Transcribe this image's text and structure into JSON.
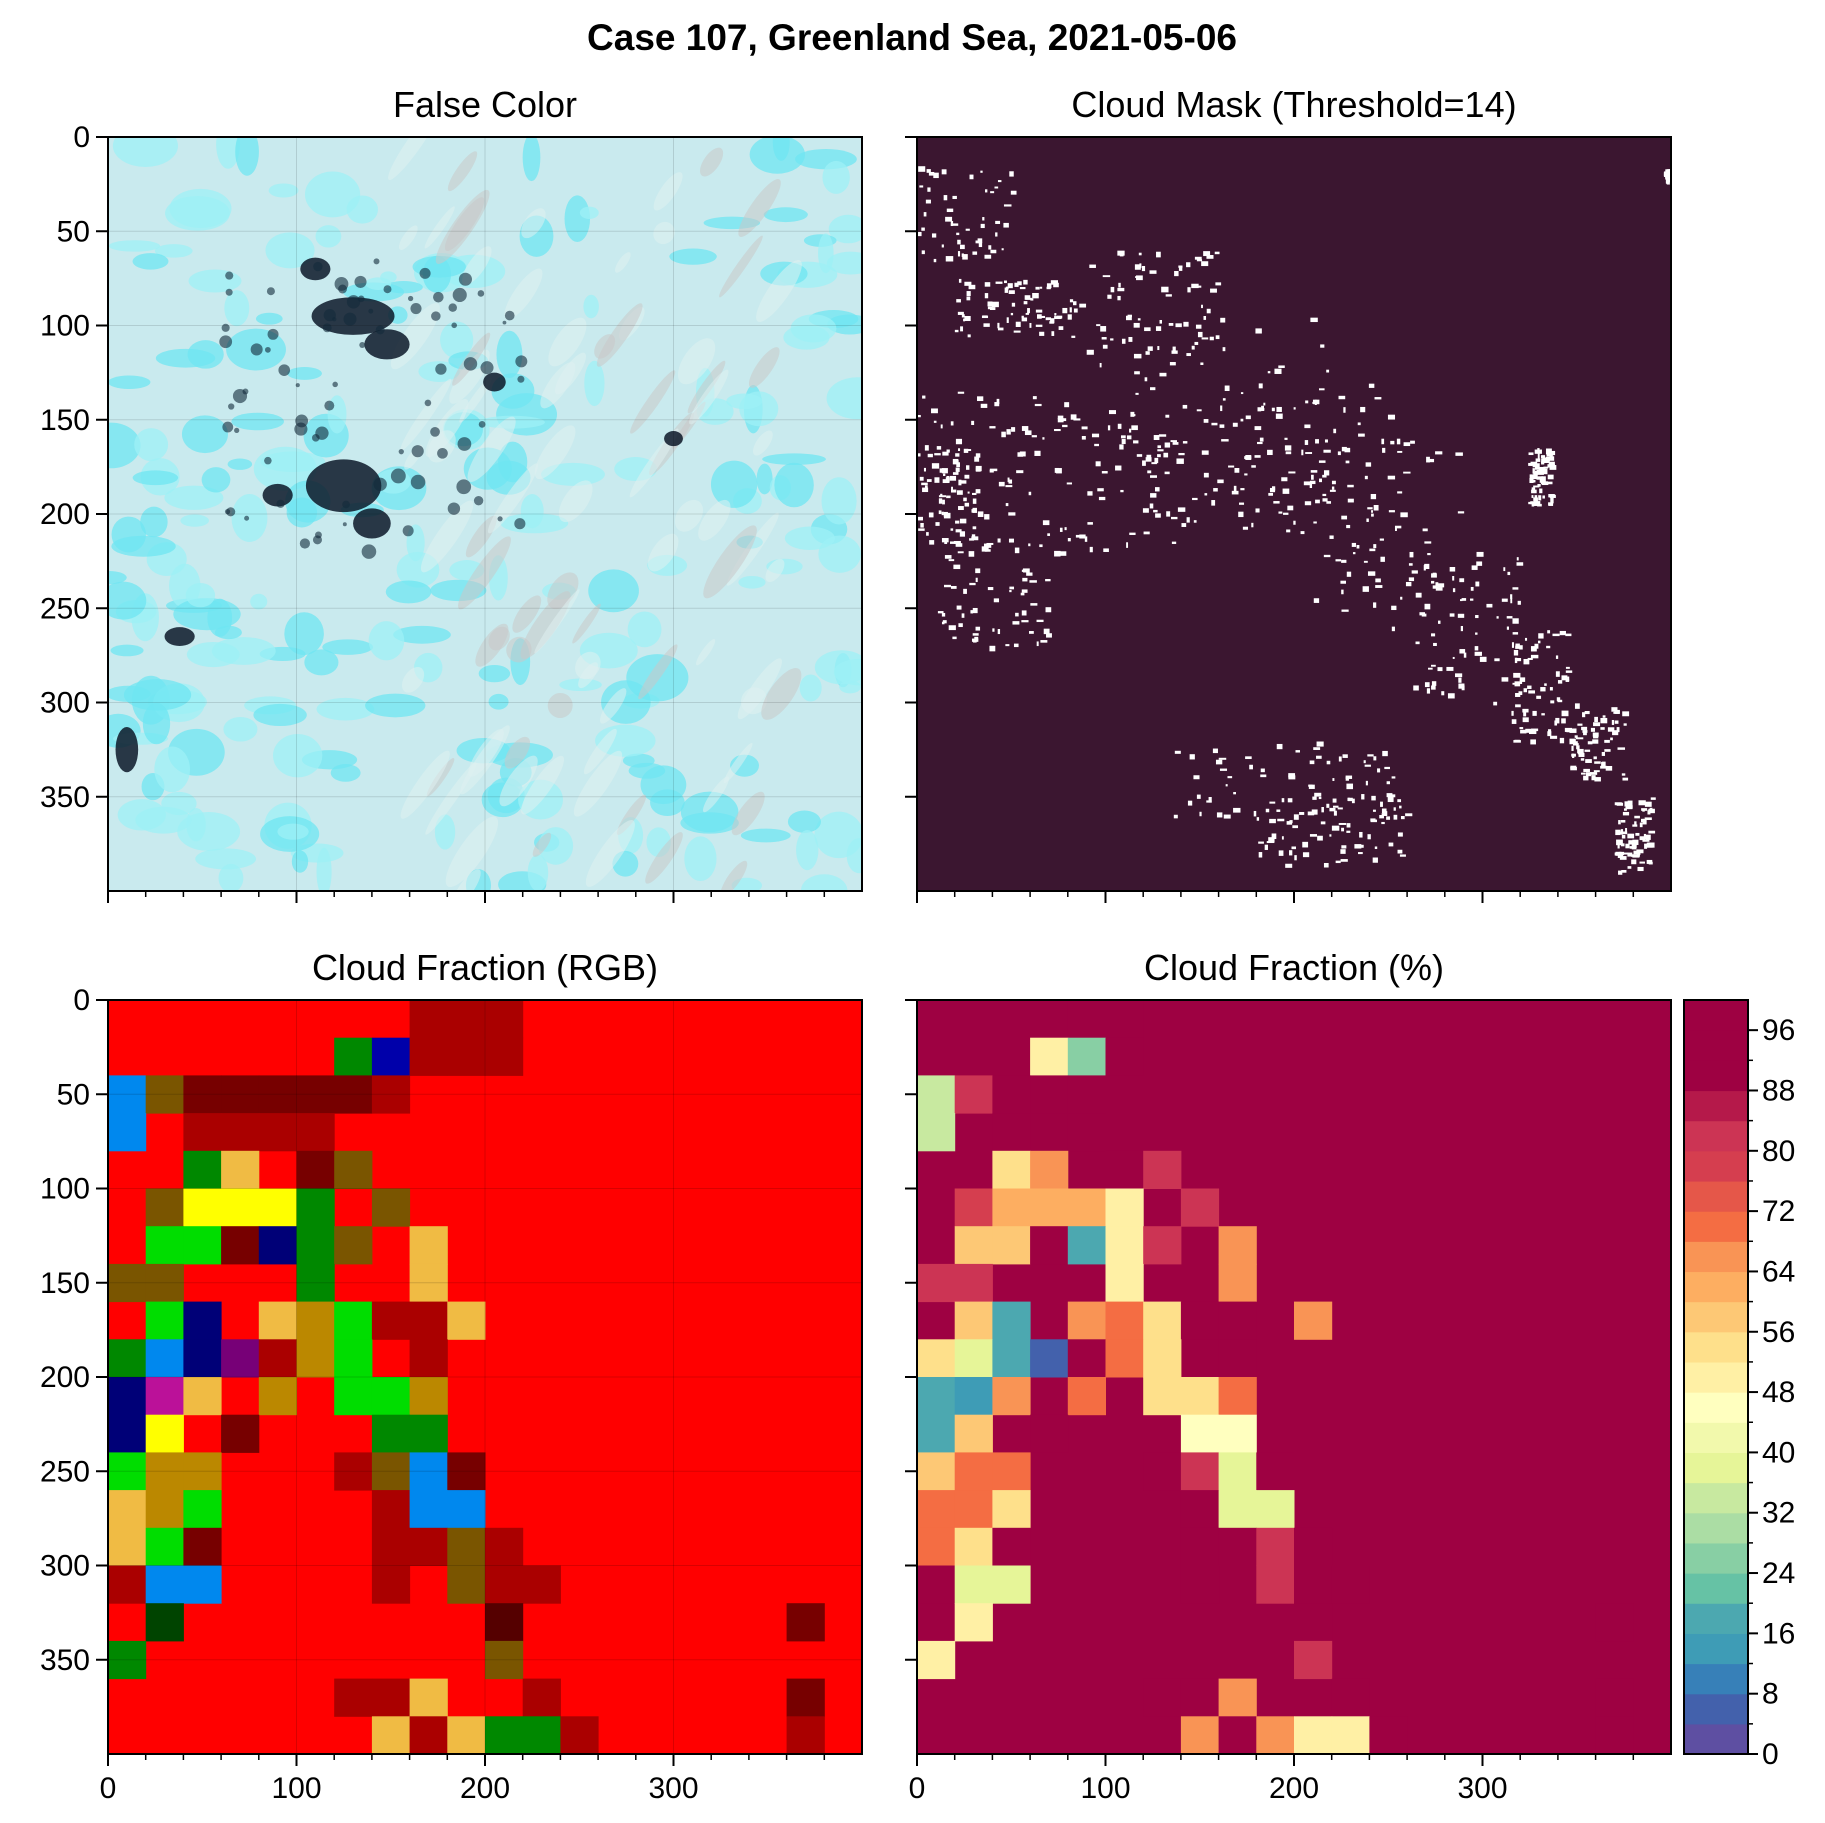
{
  "figure": {
    "title": "Case 107, Greenland Sea, 2021-05-06"
  },
  "chart_data": [
    {
      "id": "false-color",
      "type": "heatmap",
      "title": "False Color",
      "xlim": [
        0,
        400
      ],
      "ylim": [
        400,
        0
      ],
      "xticks": [
        0,
        100,
        200,
        300
      ],
      "yticks": [
        0,
        50,
        100,
        150,
        200,
        250,
        300,
        350
      ],
      "show_xticklabels": false,
      "show_yticklabels": true,
      "grid": true,
      "description_colors": {
        "ice": "#7fe8f0",
        "cloud": "#d9eef0",
        "water": "#0b1a2a"
      }
    },
    {
      "id": "cloud-mask",
      "type": "heatmap",
      "title": "Cloud Mask (Threshold=14)",
      "xlim": [
        0,
        400
      ],
      "ylim": [
        400,
        0
      ],
      "xticks": [
        0,
        100,
        200,
        300
      ],
      "yticks": [
        0,
        50,
        100,
        150,
        200,
        250,
        300,
        350
      ],
      "show_xticklabels": false,
      "show_yticklabels": false,
      "background_color": "#3b1630",
      "mask_color": "#ffffff"
    },
    {
      "id": "cf-rgb",
      "type": "heatmap",
      "title": "Cloud Fraction (RGB)",
      "xlim": [
        0,
        400
      ],
      "ylim": [
        400,
        0
      ],
      "xticks": [
        0,
        100,
        200,
        300
      ],
      "yticks": [
        0,
        50,
        100,
        150,
        200,
        250,
        300,
        350
      ],
      "show_xticklabels": true,
      "show_yticklabels": true,
      "cell_size": 20,
      "default_color": "#ff0000",
      "cells": [
        [
          8,
          0,
          "#aa0000"
        ],
        [
          9,
          0,
          "#aa0000"
        ],
        [
          10,
          0,
          "#aa0000"
        ],
        [
          6,
          1,
          "#008800"
        ],
        [
          7,
          1,
          "#0000aa"
        ],
        [
          8,
          1,
          "#aa0000"
        ],
        [
          9,
          1,
          "#aa0000"
        ],
        [
          10,
          1,
          "#aa0000"
        ],
        [
          0,
          2,
          "#0088ee"
        ],
        [
          1,
          2,
          "#7a5500"
        ],
        [
          2,
          2,
          "#770000"
        ],
        [
          3,
          2,
          "#770000"
        ],
        [
          4,
          2,
          "#770000"
        ],
        [
          5,
          2,
          "#770000"
        ],
        [
          6,
          2,
          "#770000"
        ],
        [
          7,
          2,
          "#aa0000"
        ],
        [
          0,
          3,
          "#0088ee"
        ],
        [
          2,
          3,
          "#aa0000"
        ],
        [
          3,
          3,
          "#aa0000"
        ],
        [
          4,
          3,
          "#aa0000"
        ],
        [
          5,
          3,
          "#aa0000"
        ],
        [
          2,
          4,
          "#008800"
        ],
        [
          3,
          4,
          "#f0bb44"
        ],
        [
          5,
          4,
          "#770000"
        ],
        [
          6,
          4,
          "#7a5500"
        ],
        [
          1,
          5,
          "#7a5500"
        ],
        [
          2,
          5,
          "#ffff00"
        ],
        [
          3,
          5,
          "#ffff00"
        ],
        [
          4,
          5,
          "#ffff00"
        ],
        [
          5,
          5,
          "#008800"
        ],
        [
          7,
          5,
          "#7a5500"
        ],
        [
          1,
          6,
          "#00dd00"
        ],
        [
          2,
          6,
          "#00dd00"
        ],
        [
          3,
          6,
          "#770000"
        ],
        [
          4,
          6,
          "#000077"
        ],
        [
          5,
          6,
          "#008800"
        ],
        [
          6,
          6,
          "#7a5500"
        ],
        [
          8,
          6,
          "#f0bb44"
        ],
        [
          0,
          7,
          "#7a5500"
        ],
        [
          1,
          7,
          "#7a5500"
        ],
        [
          5,
          7,
          "#008800"
        ],
        [
          8,
          7,
          "#f0bb44"
        ],
        [
          1,
          8,
          "#00dd00"
        ],
        [
          2,
          8,
          "#000077"
        ],
        [
          4,
          8,
          "#f0bb44"
        ],
        [
          5,
          8,
          "#bb8800"
        ],
        [
          6,
          8,
          "#00dd00"
        ],
        [
          7,
          8,
          "#aa0000"
        ],
        [
          8,
          8,
          "#aa0000"
        ],
        [
          9,
          8,
          "#f0bb44"
        ],
        [
          0,
          9,
          "#008800"
        ],
        [
          1,
          9,
          "#0088ee"
        ],
        [
          2,
          9,
          "#000077"
        ],
        [
          3,
          9,
          "#770077"
        ],
        [
          4,
          9,
          "#aa0000"
        ],
        [
          5,
          9,
          "#bb8800"
        ],
        [
          6,
          9,
          "#00dd00"
        ],
        [
          8,
          9,
          "#aa0000"
        ],
        [
          0,
          10,
          "#000077"
        ],
        [
          1,
          10,
          "#bb1199"
        ],
        [
          2,
          10,
          "#f0bb44"
        ],
        [
          4,
          10,
          "#bb8800"
        ],
        [
          6,
          10,
          "#00dd00"
        ],
        [
          7,
          10,
          "#00dd00"
        ],
        [
          8,
          10,
          "#bb8800"
        ],
        [
          0,
          11,
          "#000077"
        ],
        [
          1,
          11,
          "#ffff00"
        ],
        [
          3,
          11,
          "#770000"
        ],
        [
          7,
          11,
          "#008800"
        ],
        [
          8,
          11,
          "#008800"
        ],
        [
          0,
          12,
          "#00dd00"
        ],
        [
          1,
          12,
          "#bb8800"
        ],
        [
          2,
          12,
          "#bb8800"
        ],
        [
          6,
          12,
          "#aa0000"
        ],
        [
          7,
          12,
          "#7a5500"
        ],
        [
          8,
          12,
          "#0088ee"
        ],
        [
          9,
          12,
          "#770000"
        ],
        [
          0,
          13,
          "#f0bb44"
        ],
        [
          1,
          13,
          "#bb8800"
        ],
        [
          2,
          13,
          "#00dd00"
        ],
        [
          7,
          13,
          "#aa0000"
        ],
        [
          8,
          13,
          "#0088ee"
        ],
        [
          9,
          13,
          "#0088ee"
        ],
        [
          0,
          14,
          "#f0bb44"
        ],
        [
          1,
          14,
          "#00dd00"
        ],
        [
          2,
          14,
          "#770000"
        ],
        [
          7,
          14,
          "#aa0000"
        ],
        [
          8,
          14,
          "#aa0000"
        ],
        [
          9,
          14,
          "#7a5500"
        ],
        [
          10,
          14,
          "#aa0000"
        ],
        [
          0,
          15,
          "#aa0000"
        ],
        [
          1,
          15,
          "#0088ee"
        ],
        [
          2,
          15,
          "#0088ee"
        ],
        [
          7,
          15,
          "#aa0000"
        ],
        [
          9,
          15,
          "#7a5500"
        ],
        [
          10,
          15,
          "#aa0000"
        ],
        [
          11,
          15,
          "#aa0000"
        ],
        [
          1,
          16,
          "#004400"
        ],
        [
          10,
          16,
          "#550000"
        ],
        [
          18,
          16,
          "#770000"
        ],
        [
          0,
          17,
          "#008800"
        ],
        [
          10,
          17,
          "#7a5500"
        ],
        [
          6,
          18,
          "#aa0000"
        ],
        [
          7,
          18,
          "#aa0000"
        ],
        [
          8,
          18,
          "#f0bb44"
        ],
        [
          11,
          18,
          "#aa0000"
        ],
        [
          18,
          18,
          "#770000"
        ],
        [
          7,
          19,
          "#f0bb44"
        ],
        [
          8,
          19,
          "#aa0000"
        ],
        [
          9,
          19,
          "#f0bb44"
        ],
        [
          10,
          19,
          "#008800"
        ],
        [
          11,
          19,
          "#008800"
        ],
        [
          12,
          19,
          "#aa0000"
        ],
        [
          18,
          19,
          "#aa0000"
        ]
      ]
    },
    {
      "id": "cf-percent",
      "type": "heatmap",
      "title": "Cloud Fraction (%)",
      "xlim": [
        0,
        400
      ],
      "ylim": [
        400,
        0
      ],
      "xticks": [
        0,
        100,
        200,
        300
      ],
      "yticks": [
        0,
        50,
        100,
        150,
        200,
        250,
        300,
        350
      ],
      "show_xticklabels": true,
      "show_yticklabels": false,
      "cell_size": 20,
      "default_value": 100,
      "values": [
        [
          4,
          0,
          92
        ],
        [
          5,
          0,
          92
        ],
        [
          3,
          1,
          48
        ],
        [
          4,
          1,
          24
        ],
        [
          5,
          1,
          92
        ],
        [
          0,
          2,
          32
        ],
        [
          1,
          2,
          80
        ],
        [
          2,
          2,
          88
        ],
        [
          3,
          2,
          88
        ],
        [
          4,
          2,
          92
        ],
        [
          0,
          3,
          32
        ],
        [
          2,
          3,
          92
        ],
        [
          3,
          3,
          92
        ],
        [
          4,
          3,
          92
        ],
        [
          2,
          4,
          52
        ],
        [
          3,
          4,
          64
        ],
        [
          5,
          4,
          88
        ],
        [
          6,
          4,
          80
        ],
        [
          1,
          5,
          76
        ],
        [
          2,
          5,
          60
        ],
        [
          3,
          5,
          60
        ],
        [
          4,
          5,
          60
        ],
        [
          5,
          5,
          48
        ],
        [
          7,
          5,
          80
        ],
        [
          1,
          6,
          56
        ],
        [
          2,
          6,
          56
        ],
        [
          3,
          6,
          88
        ],
        [
          4,
          6,
          16
        ],
        [
          5,
          6,
          48
        ],
        [
          6,
          6,
          80
        ],
        [
          8,
          6,
          64
        ],
        [
          0,
          7,
          80
        ],
        [
          1,
          7,
          80
        ],
        [
          5,
          7,
          48
        ],
        [
          8,
          7,
          64
        ],
        [
          1,
          8,
          56
        ],
        [
          2,
          8,
          16
        ],
        [
          4,
          8,
          64
        ],
        [
          5,
          8,
          68
        ],
        [
          6,
          8,
          52
        ],
        [
          7,
          8,
          92
        ],
        [
          8,
          8,
          92
        ],
        [
          10,
          8,
          64
        ],
        [
          0,
          9,
          52
        ],
        [
          1,
          9,
          36
        ],
        [
          2,
          9,
          16
        ],
        [
          3,
          9,
          4
        ],
        [
          4,
          9,
          92
        ],
        [
          5,
          9,
          68
        ],
        [
          6,
          9,
          52
        ],
        [
          8,
          9,
          92
        ],
        [
          0,
          10,
          16
        ],
        [
          1,
          10,
          12
        ],
        [
          2,
          10,
          64
        ],
        [
          4,
          10,
          68
        ],
        [
          6,
          10,
          52
        ],
        [
          7,
          10,
          52
        ],
        [
          8,
          10,
          68
        ],
        [
          0,
          11,
          16
        ],
        [
          1,
          11,
          56
        ],
        [
          3,
          11,
          88
        ],
        [
          7,
          11,
          44
        ],
        [
          8,
          11,
          44
        ],
        [
          0,
          12,
          56
        ],
        [
          1,
          12,
          68
        ],
        [
          2,
          12,
          68
        ],
        [
          6,
          12,
          88
        ],
        [
          7,
          12,
          80
        ],
        [
          8,
          12,
          36
        ],
        [
          9,
          12,
          88
        ],
        [
          0,
          13,
          68
        ],
        [
          1,
          13,
          68
        ],
        [
          2,
          13,
          52
        ],
        [
          7,
          13,
          92
        ],
        [
          8,
          13,
          36
        ],
        [
          9,
          13,
          36
        ],
        [
          0,
          14,
          68
        ],
        [
          1,
          14,
          52
        ],
        [
          2,
          14,
          88
        ],
        [
          7,
          14,
          92
        ],
        [
          8,
          14,
          92
        ],
        [
          9,
          14,
          80
        ],
        [
          10,
          14,
          92
        ],
        [
          0,
          15,
          88
        ],
        [
          1,
          15,
          36
        ],
        [
          2,
          15,
          36
        ],
        [
          7,
          15,
          92
        ],
        [
          9,
          15,
          80
        ],
        [
          10,
          15,
          92
        ],
        [
          11,
          15,
          92
        ],
        [
          1,
          16,
          48
        ],
        [
          10,
          16,
          88
        ],
        [
          18,
          16,
          88
        ],
        [
          0,
          17,
          48
        ],
        [
          10,
          17,
          80
        ],
        [
          6,
          18,
          92
        ],
        [
          7,
          18,
          92
        ],
        [
          8,
          18,
          64
        ],
        [
          11,
          18,
          92
        ],
        [
          18,
          18,
          88
        ],
        [
          7,
          19,
          64
        ],
        [
          8,
          19,
          92
        ],
        [
          9,
          19,
          64
        ],
        [
          10,
          19,
          48
        ],
        [
          11,
          19,
          48
        ],
        [
          12,
          19,
          92
        ],
        [
          18,
          19,
          92
        ]
      ]
    }
  ],
  "colorbar": {
    "type": "colorbar",
    "range": [
      0,
      100
    ],
    "step": 4,
    "tick_labels": [
      "0",
      "8",
      "16",
      "24",
      "32",
      "40",
      "48",
      "56",
      "64",
      "72",
      "80",
      "88",
      "96"
    ],
    "colors": [
      "#5e4fa2",
      "#4361ac",
      "#3780b8",
      "#3e9cb6",
      "#4ca8b0",
      "#66c2a5",
      "#88cfa4",
      "#abdda4",
      "#c8e9a0",
      "#e6f598",
      "#f2f9ac",
      "#ffffbf",
      "#fff0a5",
      "#fee08b",
      "#fdc875",
      "#fdae61",
      "#f99455",
      "#f46d43",
      "#e55749",
      "#d53e4f",
      "#cc3454",
      "#b5194a",
      "#9e0142",
      "#9e0142",
      "#9e0142"
    ]
  }
}
